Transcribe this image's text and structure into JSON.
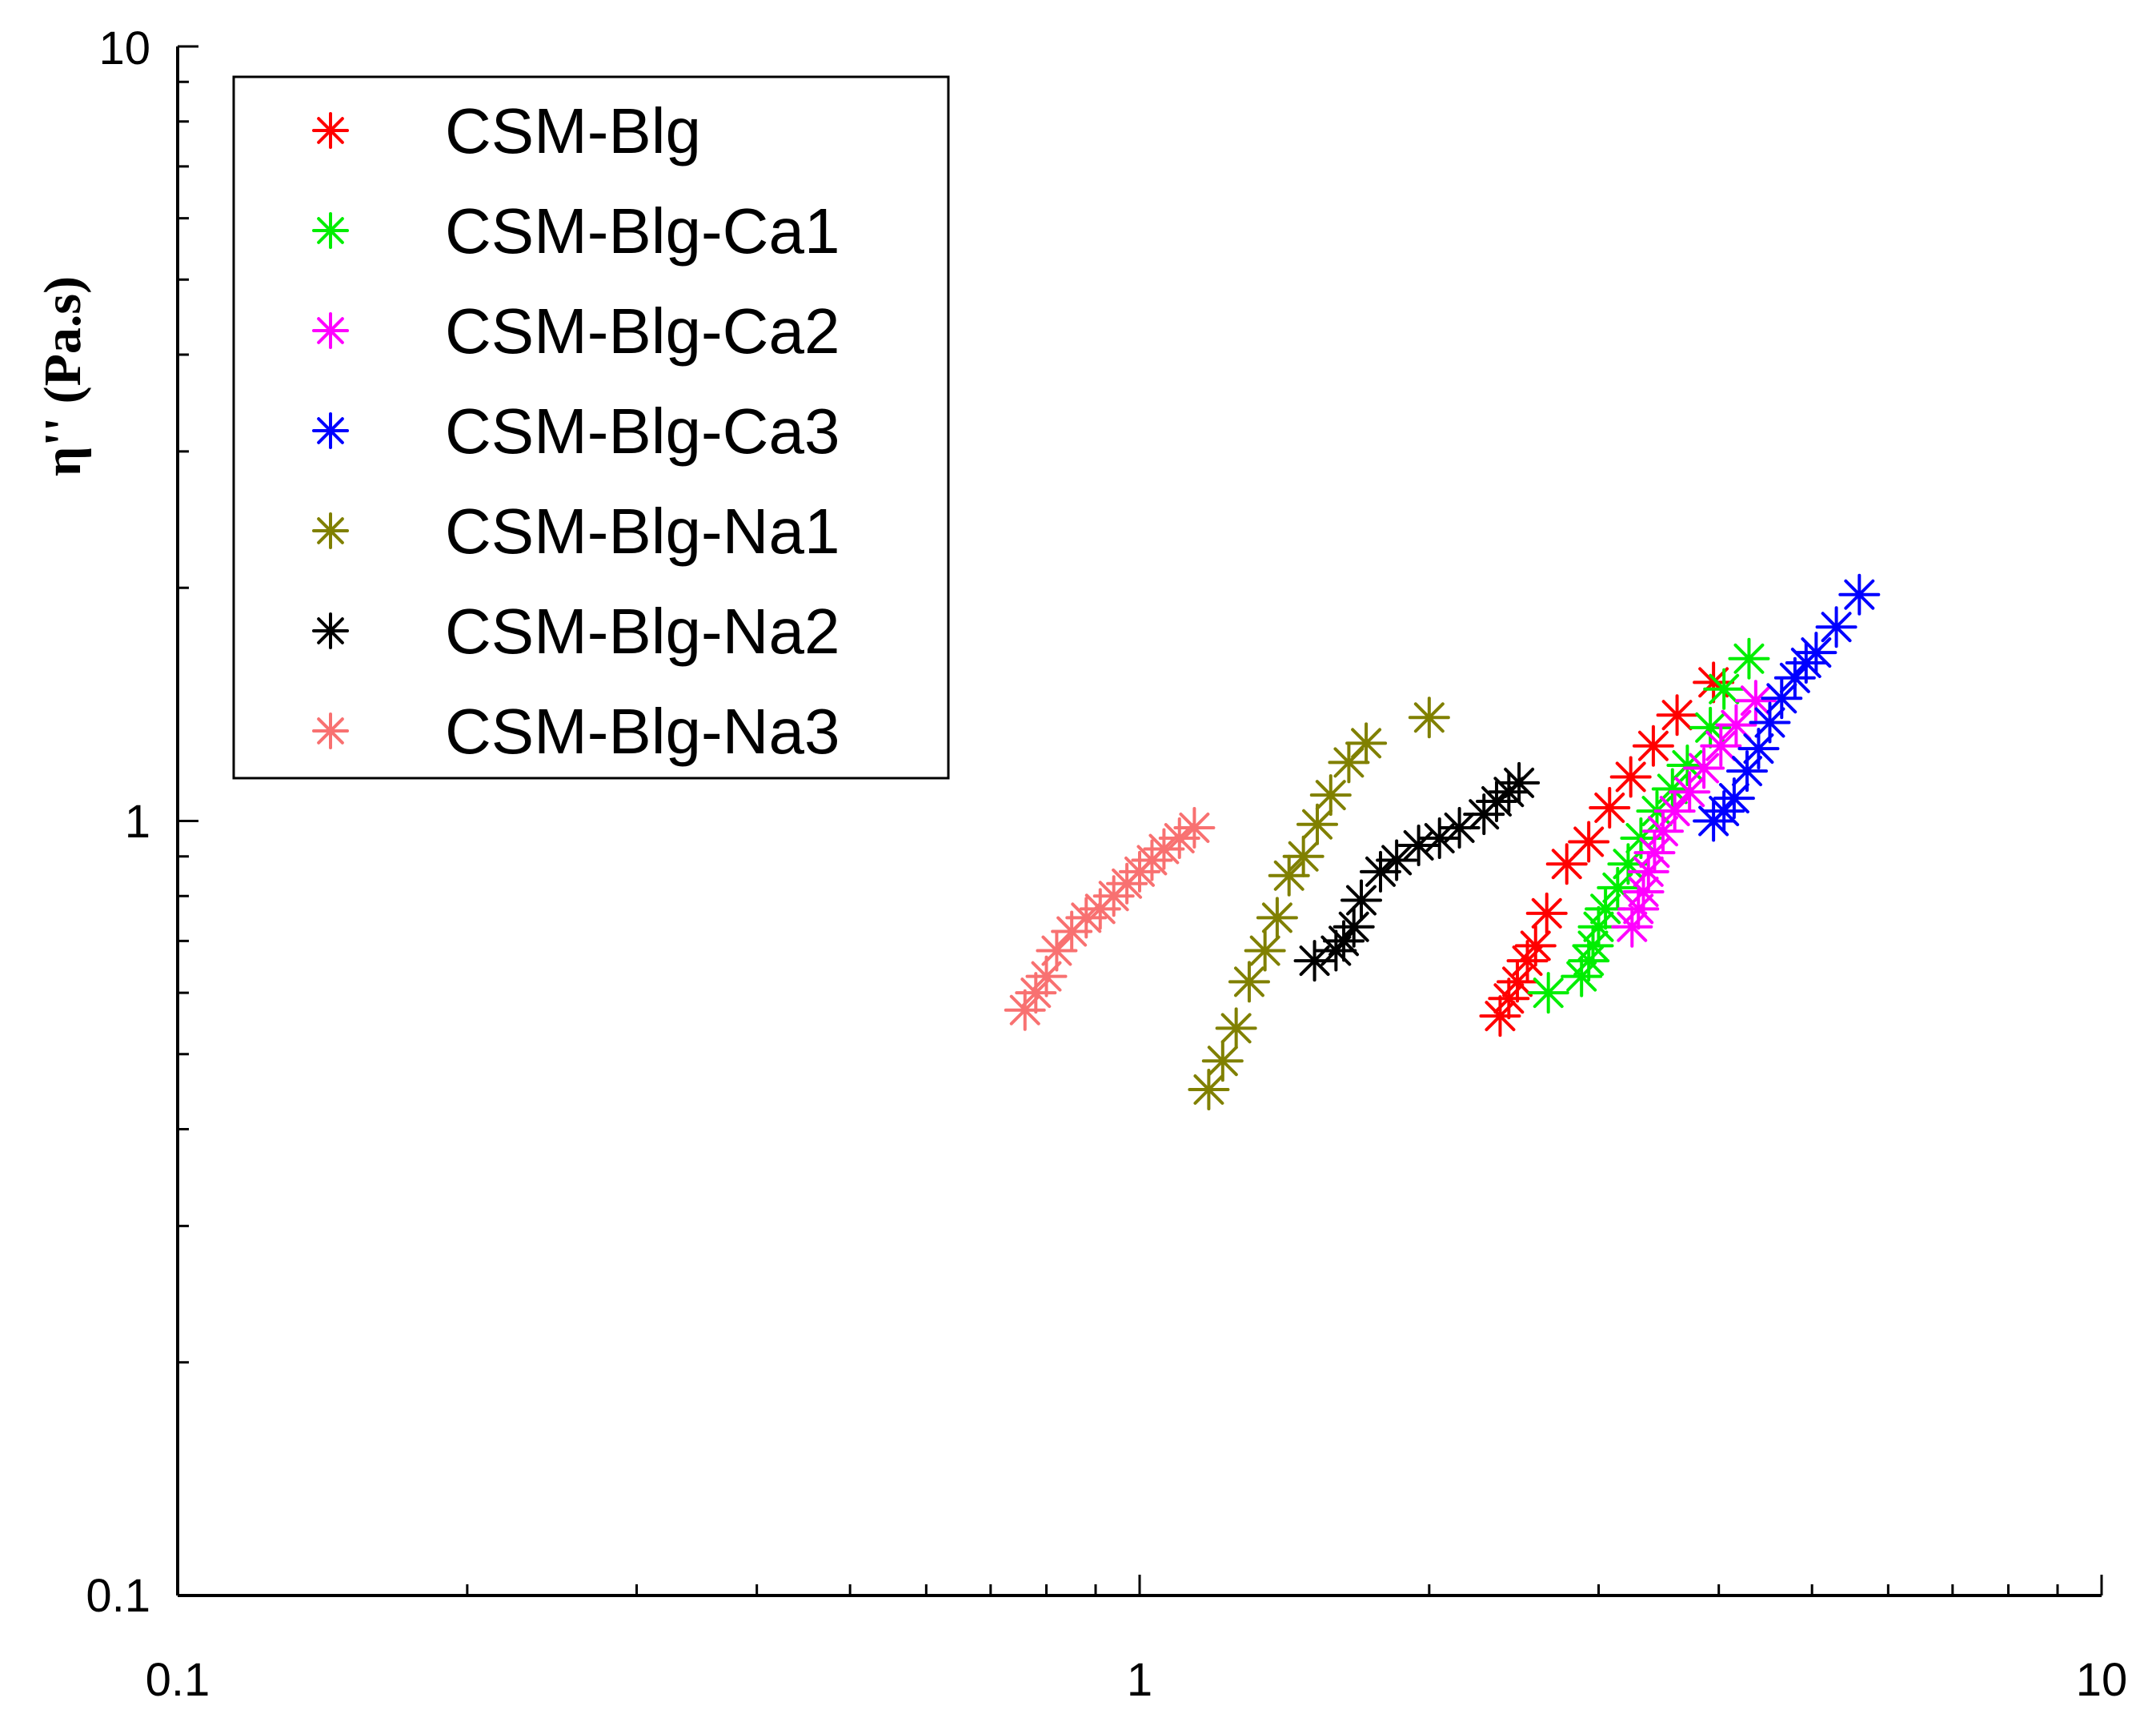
{
  "chart_data": {
    "type": "scatter",
    "title": "",
    "xlabel": "",
    "ylabel": "η'' (Pa.s)",
    "xscale": "log",
    "yscale": "log",
    "xlim": [
      0.1,
      10
    ],
    "ylim": [
      0.1,
      10
    ],
    "x_tick_labels": [
      "0.1",
      "1",
      "10"
    ],
    "y_tick_labels": [
      "0.1",
      "1",
      "10"
    ],
    "grid": false,
    "legend_position": "top-left",
    "marker": "asterisk",
    "series": [
      {
        "name": "CSM-Blg",
        "color": "#ff0000",
        "x": [
          2.37,
          2.42,
          2.47,
          2.53,
          2.58,
          2.65,
          2.78,
          2.93,
          3.08,
          3.24,
          3.42,
          3.62,
          3.95
        ],
        "y": [
          0.56,
          0.59,
          0.62,
          0.66,
          0.69,
          0.76,
          0.88,
          0.94,
          1.04,
          1.14,
          1.25,
          1.37,
          1.51
        ]
      },
      {
        "name": "CSM-Blg-Ca1",
        "color": "#00ee00",
        "x": [
          2.66,
          2.88,
          2.93,
          2.96,
          3.0,
          3.05,
          3.14,
          3.22,
          3.32,
          3.45,
          3.58,
          3.71,
          3.92,
          4.05,
          4.3
        ],
        "y": [
          0.6,
          0.63,
          0.66,
          0.69,
          0.73,
          0.77,
          0.82,
          0.88,
          0.95,
          1.03,
          1.1,
          1.18,
          1.32,
          1.48,
          1.62
        ]
      },
      {
        "name": "CSM-Blg-Ca2",
        "color": "#ff00ff",
        "x": [
          3.25,
          3.3,
          3.34,
          3.38,
          3.43,
          3.5,
          3.6,
          3.73,
          3.86,
          4.02,
          4.17,
          4.37
        ],
        "y": [
          0.73,
          0.77,
          0.81,
          0.86,
          0.91,
          0.97,
          1.03,
          1.09,
          1.17,
          1.25,
          1.33,
          1.43
        ]
      },
      {
        "name": "CSM-Blg-Ca3",
        "color": "#0000ff",
        "x": [
          3.95,
          4.05,
          4.15,
          4.28,
          4.4,
          4.52,
          4.65,
          4.8,
          4.93,
          5.05,
          5.3,
          5.6
        ],
        "y": [
          1.0,
          1.03,
          1.07,
          1.16,
          1.24,
          1.34,
          1.44,
          1.53,
          1.6,
          1.65,
          1.78,
          1.96
        ]
      },
      {
        "name": "CSM-Blg-Na1",
        "color": "#808000",
        "x": [
          1.18,
          1.22,
          1.26,
          1.3,
          1.35,
          1.39,
          1.43,
          1.48,
          1.53,
          1.58,
          1.65,
          1.72,
          2.0
        ],
        "y": [
          0.45,
          0.49,
          0.54,
          0.62,
          0.68,
          0.75,
          0.85,
          0.9,
          0.99,
          1.08,
          1.19,
          1.26,
          1.36
        ]
      },
      {
        "name": "CSM-Blg-Na2",
        "color": "#000000",
        "x": [
          1.52,
          1.6,
          1.63,
          1.67,
          1.7,
          1.78,
          1.85,
          1.95,
          2.05,
          2.15,
          2.28,
          2.35,
          2.42,
          2.48
        ],
        "y": [
          0.66,
          0.68,
          0.7,
          0.73,
          0.79,
          0.86,
          0.89,
          0.93,
          0.95,
          0.98,
          1.02,
          1.06,
          1.09,
          1.12
        ]
      },
      {
        "name": "CSM-Blg-Na3",
        "color": "#f87171",
        "x": [
          0.76,
          0.78,
          0.8,
          0.82,
          0.85,
          0.88,
          0.91,
          0.94,
          0.97,
          1.0,
          1.03,
          1.06,
          1.1,
          1.14
        ],
        "y": [
          0.57,
          0.6,
          0.63,
          0.68,
          0.72,
          0.75,
          0.77,
          0.8,
          0.83,
          0.86,
          0.89,
          0.92,
          0.95,
          0.98
        ]
      }
    ]
  }
}
